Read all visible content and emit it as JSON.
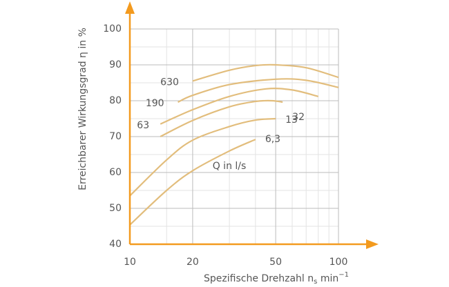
{
  "chart_data": {
    "type": "line",
    "y_label": "Erreichbarer Wirkungsgrad η in %",
    "x_label": {
      "main": "Spezifische Drehzahl n",
      "sub": "s",
      "unit": "min",
      "sup": "−1"
    },
    "annotation": "Q in l/s",
    "log_x": true,
    "xlim": [
      10,
      100
    ],
    "xticks": [
      10,
      20,
      50,
      100
    ],
    "minor_xticks": [
      15,
      30,
      40,
      60,
      70,
      80,
      90
    ],
    "ylim": [
      40,
      100
    ],
    "yticks": [
      40,
      50,
      60,
      70,
      80,
      90,
      100
    ],
    "minor_yticks": [
      45,
      55,
      65,
      75,
      85,
      95
    ],
    "grid": true,
    "axis_color": "#f39a1e",
    "series": [
      {
        "name": "630",
        "color": "#e2bd7c",
        "x": [
          20,
          30,
          40,
          50,
          70,
          100
        ],
        "values": [
          85.5,
          88.5,
          89.8,
          90,
          89.2,
          86.5
        ]
      },
      {
        "name": "190",
        "color": "#e2bd7c",
        "x": [
          17,
          20,
          30,
          50,
          70,
          100
        ],
        "values": [
          79.6,
          81.5,
          84.5,
          86,
          85.7,
          83.7
        ]
      },
      {
        "name": "63",
        "color": "#e2bd7c",
        "x": [
          14,
          20,
          30,
          45,
          60,
          80
        ],
        "values": [
          73.5,
          77.5,
          81.2,
          83.3,
          83,
          81.2
        ]
      },
      {
        "name": "32",
        "color": "#e2bd7c",
        "x": [
          14,
          20,
          30,
          40,
          48,
          54
        ],
        "values": [
          70,
          74.5,
          78.3,
          79.8,
          80,
          79.6
        ]
      },
      {
        "name": "13",
        "color": "#e2bd7c",
        "x": [
          10,
          15,
          20,
          30,
          40,
          50
        ],
        "values": [
          53.5,
          63.5,
          69,
          72.8,
          74.6,
          75
        ]
      },
      {
        "name": "6,3",
        "color": "#e2bd7c",
        "x": [
          10,
          15,
          20,
          30,
          40
        ],
        "values": [
          45.4,
          55,
          60.5,
          66,
          69.2
        ]
      }
    ]
  }
}
